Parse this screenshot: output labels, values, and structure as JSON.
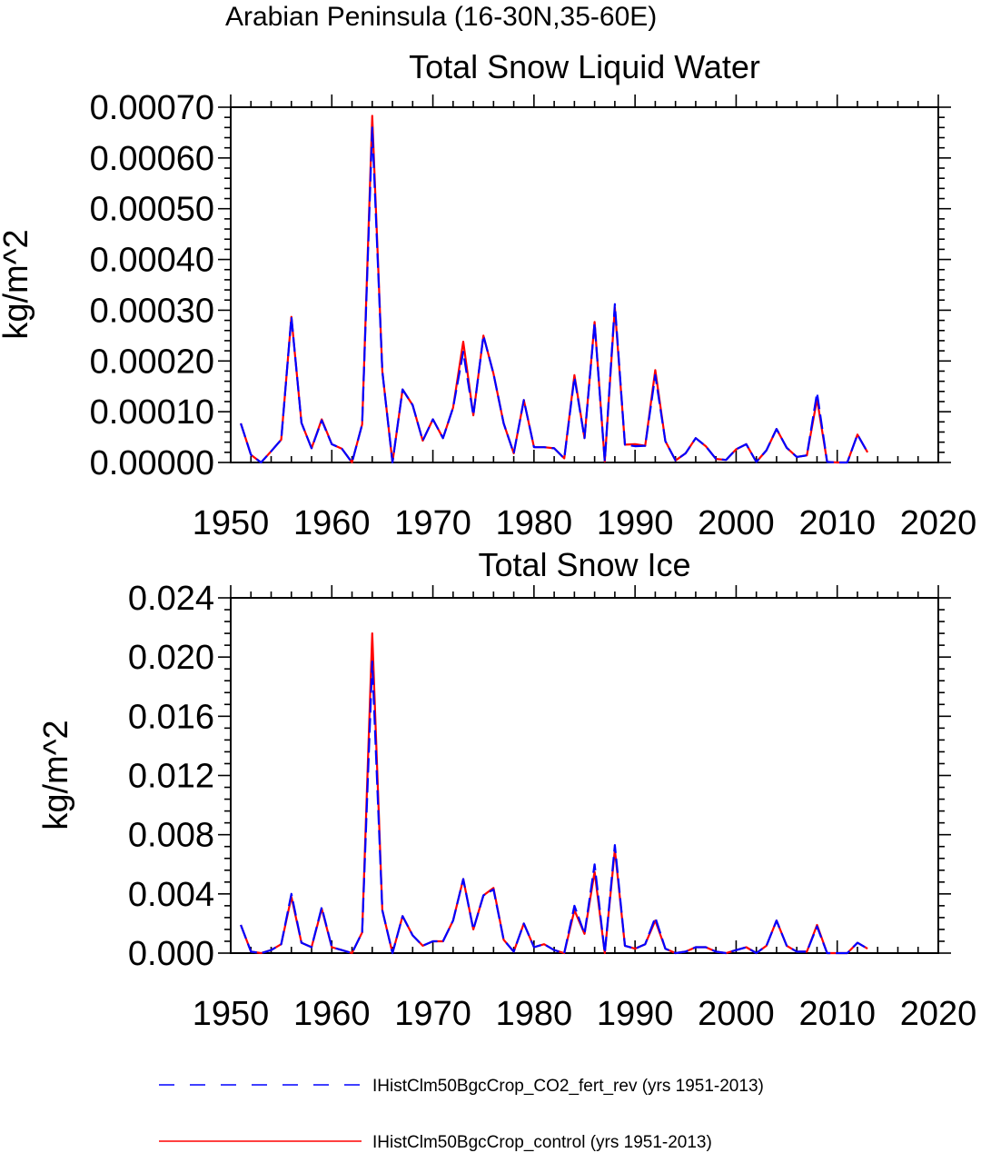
{
  "figure": {
    "suptitle": "Arabian Peninsula (16-30N,35-60E)"
  },
  "legend": [
    {
      "label": "IHistClm50BgcCrop_CO2_fert_rev (yrs 1951-2013)",
      "color": "#0000ff",
      "style": "dashed"
    },
    {
      "label": "IHistClm50BgcCrop_control (yrs 1951-2013)",
      "color": "#ff0000",
      "style": "solid"
    }
  ],
  "chart_data": [
    {
      "type": "line",
      "title": "Total Snow Liquid Water",
      "xlabel": "",
      "ylabel": "kg/m^2",
      "xlim": [
        1950,
        2020
      ],
      "ylim": [
        0,
        0.0007
      ],
      "xticks": [
        1950,
        1960,
        1970,
        1980,
        1990,
        2000,
        2010,
        2020
      ],
      "xtick_labels": [
        "1950",
        "1960",
        "1970",
        "1980",
        "1990",
        "2000",
        "2010",
        "2020"
      ],
      "yticks": [
        0,
        0.0001,
        0.0002,
        0.0003,
        0.0004,
        0.0005,
        0.0006,
        0.0007
      ],
      "ytick_labels": [
        "0.00000",
        "0.00010",
        "0.00020",
        "0.00030",
        "0.00040",
        "0.00050",
        "0.00060",
        "0.00070"
      ],
      "grid": false,
      "x": [
        1951,
        1952,
        1953,
        1954,
        1955,
        1956,
        1957,
        1958,
        1959,
        1960,
        1961,
        1962,
        1963,
        1964,
        1965,
        1966,
        1967,
        1968,
        1969,
        1970,
        1971,
        1972,
        1973,
        1974,
        1975,
        1976,
        1977,
        1978,
        1979,
        1980,
        1981,
        1982,
        1983,
        1984,
        1985,
        1986,
        1987,
        1988,
        1989,
        1990,
        1991,
        1992,
        1993,
        1994,
        1995,
        1996,
        1997,
        1998,
        1999,
        2000,
        2001,
        2002,
        2003,
        2004,
        2005,
        2006,
        2007,
        2008,
        2009,
        2010,
        2011,
        2012,
        2013
      ],
      "series": [
        {
          "name": "IHistClm50BgcCrop_CO2_fert_rev (yrs 1951-2013)",
          "color": "#0000ff",
          "style": "dashed",
          "values": [
            7.7e-05,
            1.5e-05,
            0.0,
            2.2e-05,
            4.5e-05,
            0.000287,
            7.8e-05,
            2.8e-05,
            8.3e-05,
            3.6e-05,
            2.7e-05,
            0.0,
            7.5e-05,
            0.00066,
            0.00018,
            0.0,
            0.000144,
            0.000113,
            4.3e-05,
            8.5e-05,
            4.8e-05,
            0.000108,
            0.000218,
            9.3e-05,
            0.00025,
            0.000175,
            7.7e-05,
            1.8e-05,
            0.000123,
            3e-05,
            3e-05,
            2.8e-05,
            8e-06,
            0.000168,
            4.8e-05,
            0.000275,
            2e-06,
            0.000312,
            3.5e-05,
            3.2e-05,
            3.3e-05,
            0.000172,
            4.2e-05,
            4e-06,
            1.8e-05,
            4.8e-05,
            3.2e-05,
            7e-06,
            5e-06,
            2.6e-05,
            3.6e-05,
            1e-06,
            2.4e-05,
            6.6e-05,
            2.9e-05,
            1.1e-05,
            1.4e-05,
            0.000137,
            1e-06,
            0.0,
            0.0,
            5.5e-05,
            2e-05
          ]
        },
        {
          "name": "IHistClm50BgcCrop_control (yrs 1951-2013)",
          "color": "#ff0000",
          "style": "solid",
          "values": [
            7.7e-05,
            1.5e-05,
            0.0,
            2.2e-05,
            4.5e-05,
            0.000287,
            7.8e-05,
            2.8e-05,
            8.5e-05,
            3.6e-05,
            2.7e-05,
            0.0,
            7.5e-05,
            0.000683,
            0.00018,
            0.0,
            0.000144,
            0.000113,
            4.3e-05,
            8.5e-05,
            4.8e-05,
            0.000108,
            0.000238,
            9.3e-05,
            0.00025,
            0.000175,
            7.7e-05,
            1.8e-05,
            0.000123,
            3e-05,
            3e-05,
            2.8e-05,
            8e-06,
            0.000172,
            4.8e-05,
            0.000277,
            2e-06,
            0.000305,
            3.5e-05,
            3.6e-05,
            3.3e-05,
            0.000182,
            4.2e-05,
            4e-06,
            1.8e-05,
            4.8e-05,
            3.2e-05,
            7e-06,
            5e-06,
            2.6e-05,
            3.6e-05,
            1e-06,
            2.4e-05,
            6.6e-05,
            2.9e-05,
            1.1e-05,
            1.4e-05,
            0.000125,
            1e-06,
            0.0,
            0.0,
            5.5e-05,
            2e-05
          ]
        }
      ]
    },
    {
      "type": "line",
      "title": "Total Snow Ice",
      "xlabel": "",
      "ylabel": "kg/m^2",
      "xlim": [
        1950,
        2020
      ],
      "ylim": [
        0,
        0.024
      ],
      "xticks": [
        1950,
        1960,
        1970,
        1980,
        1990,
        2000,
        2010,
        2020
      ],
      "xtick_labels": [
        "1950",
        "1960",
        "1970",
        "1980",
        "1990",
        "2000",
        "2010",
        "2020"
      ],
      "yticks": [
        0,
        0.004,
        0.008,
        0.012,
        0.016,
        0.02,
        0.024
      ],
      "ytick_labels": [
        "0.000",
        "0.004",
        "0.008",
        "0.012",
        "0.016",
        "0.020",
        "0.024"
      ],
      "grid": false,
      "x": [
        1951,
        1952,
        1953,
        1954,
        1955,
        1956,
        1957,
        1958,
        1959,
        1960,
        1961,
        1962,
        1963,
        1964,
        1965,
        1966,
        1967,
        1968,
        1969,
        1970,
        1971,
        1972,
        1973,
        1974,
        1975,
        1976,
        1977,
        1978,
        1979,
        1980,
        1981,
        1982,
        1983,
        1984,
        1985,
        1986,
        1987,
        1988,
        1989,
        1990,
        1991,
        1992,
        1993,
        1994,
        1995,
        1996,
        1997,
        1998,
        1999,
        2000,
        2001,
        2002,
        2003,
        2004,
        2005,
        2006,
        2007,
        2008,
        2009,
        2010,
        2011,
        2012,
        2013
      ],
      "series": [
        {
          "name": "IHistClm50BgcCrop_CO2_fert_rev (yrs 1951-2013)",
          "color": "#0000ff",
          "style": "dashed",
          "values": [
            0.0019,
            0.0001,
            0.0,
            0.0002,
            0.0006,
            0.004,
            0.0007,
            0.0004,
            0.0031,
            0.0004,
            0.0002,
            0.0,
            0.0014,
            0.0197,
            0.0029,
            0.0,
            0.0025,
            0.0012,
            0.0005,
            0.0008,
            0.0008,
            0.0022,
            0.005,
            0.0016,
            0.0039,
            0.0043,
            0.0009,
            0.0001,
            0.002,
            0.0004,
            0.0006,
            0.0002,
            0.0,
            0.0032,
            0.0013,
            0.006,
            0.0,
            0.0073,
            0.0005,
            0.0003,
            0.0006,
            0.0024,
            0.0003,
            0.0,
            0.0001,
            0.0004,
            0.0004,
            0.0001,
            0.0,
            0.0002,
            0.0004,
            0.0,
            0.0005,
            0.0022,
            0.0005,
            0.0001,
            0.0001,
            0.0018,
            0.0,
            0.0,
            0.0,
            0.0007,
            0.0003
          ]
        },
        {
          "name": "IHistClm50BgcCrop_control (yrs 1951-2013)",
          "color": "#ff0000",
          "style": "solid",
          "values": [
            0.0019,
            0.0001,
            0.0,
            0.0002,
            0.0006,
            0.0038,
            0.0007,
            0.0004,
            0.003,
            0.0004,
            0.0002,
            0.0,
            0.0014,
            0.0216,
            0.0029,
            0.0,
            0.0025,
            0.0012,
            0.0005,
            0.0008,
            0.0008,
            0.0022,
            0.005,
            0.0016,
            0.0039,
            0.0044,
            0.0009,
            0.0001,
            0.002,
            0.0004,
            0.0006,
            0.0002,
            0.0,
            0.0029,
            0.0013,
            0.0055,
            0.0,
            0.007,
            0.0005,
            0.0003,
            0.0006,
            0.0022,
            0.0003,
            0.0,
            0.0001,
            0.0004,
            0.0004,
            0.0001,
            0.0,
            0.0002,
            0.0004,
            0.0,
            0.0005,
            0.0022,
            0.0005,
            0.0001,
            0.0001,
            0.0019,
            0.0,
            0.0,
            0.0,
            0.0007,
            0.0003
          ]
        }
      ]
    }
  ]
}
